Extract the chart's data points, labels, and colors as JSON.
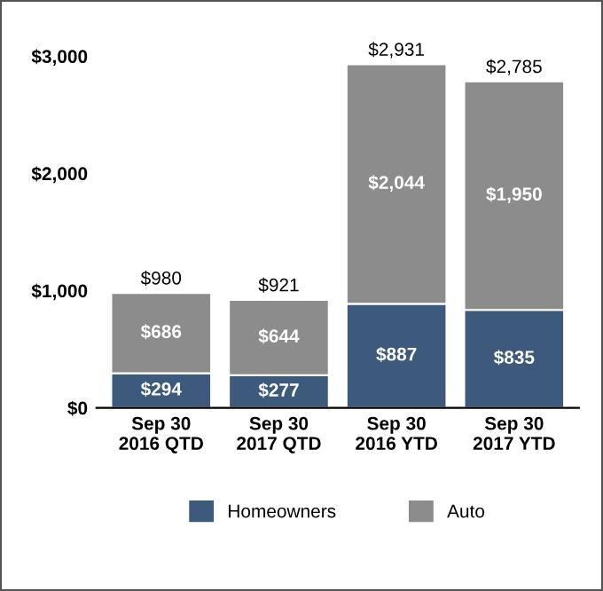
{
  "chart_data": {
    "type": "bar",
    "stacked": true,
    "categories": [
      "Sep 30\n2016 QTD",
      "Sep 30\n2017 QTD",
      "Sep 30\n2016 YTD",
      "Sep 30\n2017 YTD"
    ],
    "series": [
      {
        "name": "Homeowners",
        "color": "#3d5a7c",
        "values": [
          294,
          277,
          887,
          835
        ],
        "value_labels": [
          "$294",
          "$277",
          "$887",
          "$835"
        ]
      },
      {
        "name": "Auto",
        "color": "#8c8c8c",
        "values": [
          686,
          644,
          2044,
          1950
        ],
        "value_labels": [
          "$686",
          "$644",
          "$2,044",
          "$1,950"
        ]
      }
    ],
    "totals": [
      "$980",
      "$921",
      "$2,931",
      "$2,785"
    ],
    "ylim": [
      0,
      3000
    ],
    "yticks": [
      {
        "value": 0,
        "label": "$0"
      },
      {
        "value": 1000,
        "label": "$1,000"
      },
      {
        "value": 2000,
        "label": "$2,000"
      },
      {
        "value": 3000,
        "label": "$3,000"
      }
    ],
    "grid": false,
    "legend": "bottom"
  }
}
